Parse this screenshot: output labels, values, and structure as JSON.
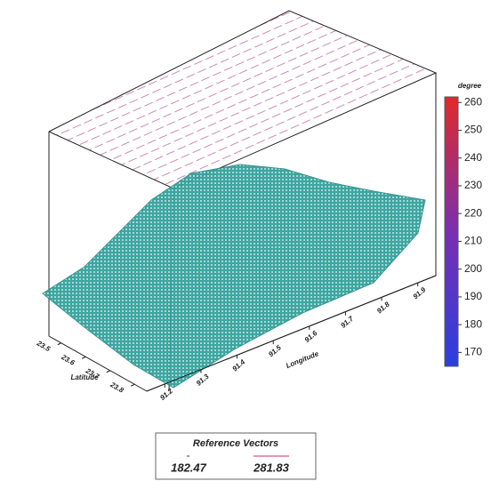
{
  "chart_data": {
    "type": "surface",
    "xlabel": "Longitude",
    "ylabel": "Latitude",
    "xticks": [
      91.2,
      91.3,
      91.4,
      91.5,
      91.6,
      91.7,
      91.8,
      91.9
    ],
    "xlim": [
      91.15,
      91.95
    ],
    "yticks": [
      23.5,
      23.6,
      23.7,
      23.8
    ],
    "ylim": [
      23.45,
      23.85
    ],
    "colorbar": {
      "label": "degree",
      "lim": [
        165,
        262
      ],
      "ticks": [
        170,
        180,
        190,
        200,
        210,
        220,
        230,
        240,
        250,
        260
      ],
      "colors": [
        "#2a3fe0",
        "#7a2fb0",
        "#e02a2a"
      ]
    },
    "legend": {
      "title": "Reference Vectors",
      "values": [
        182.47,
        281.83
      ],
      "colors": [
        "#333333",
        "#c0306a"
      ]
    }
  }
}
